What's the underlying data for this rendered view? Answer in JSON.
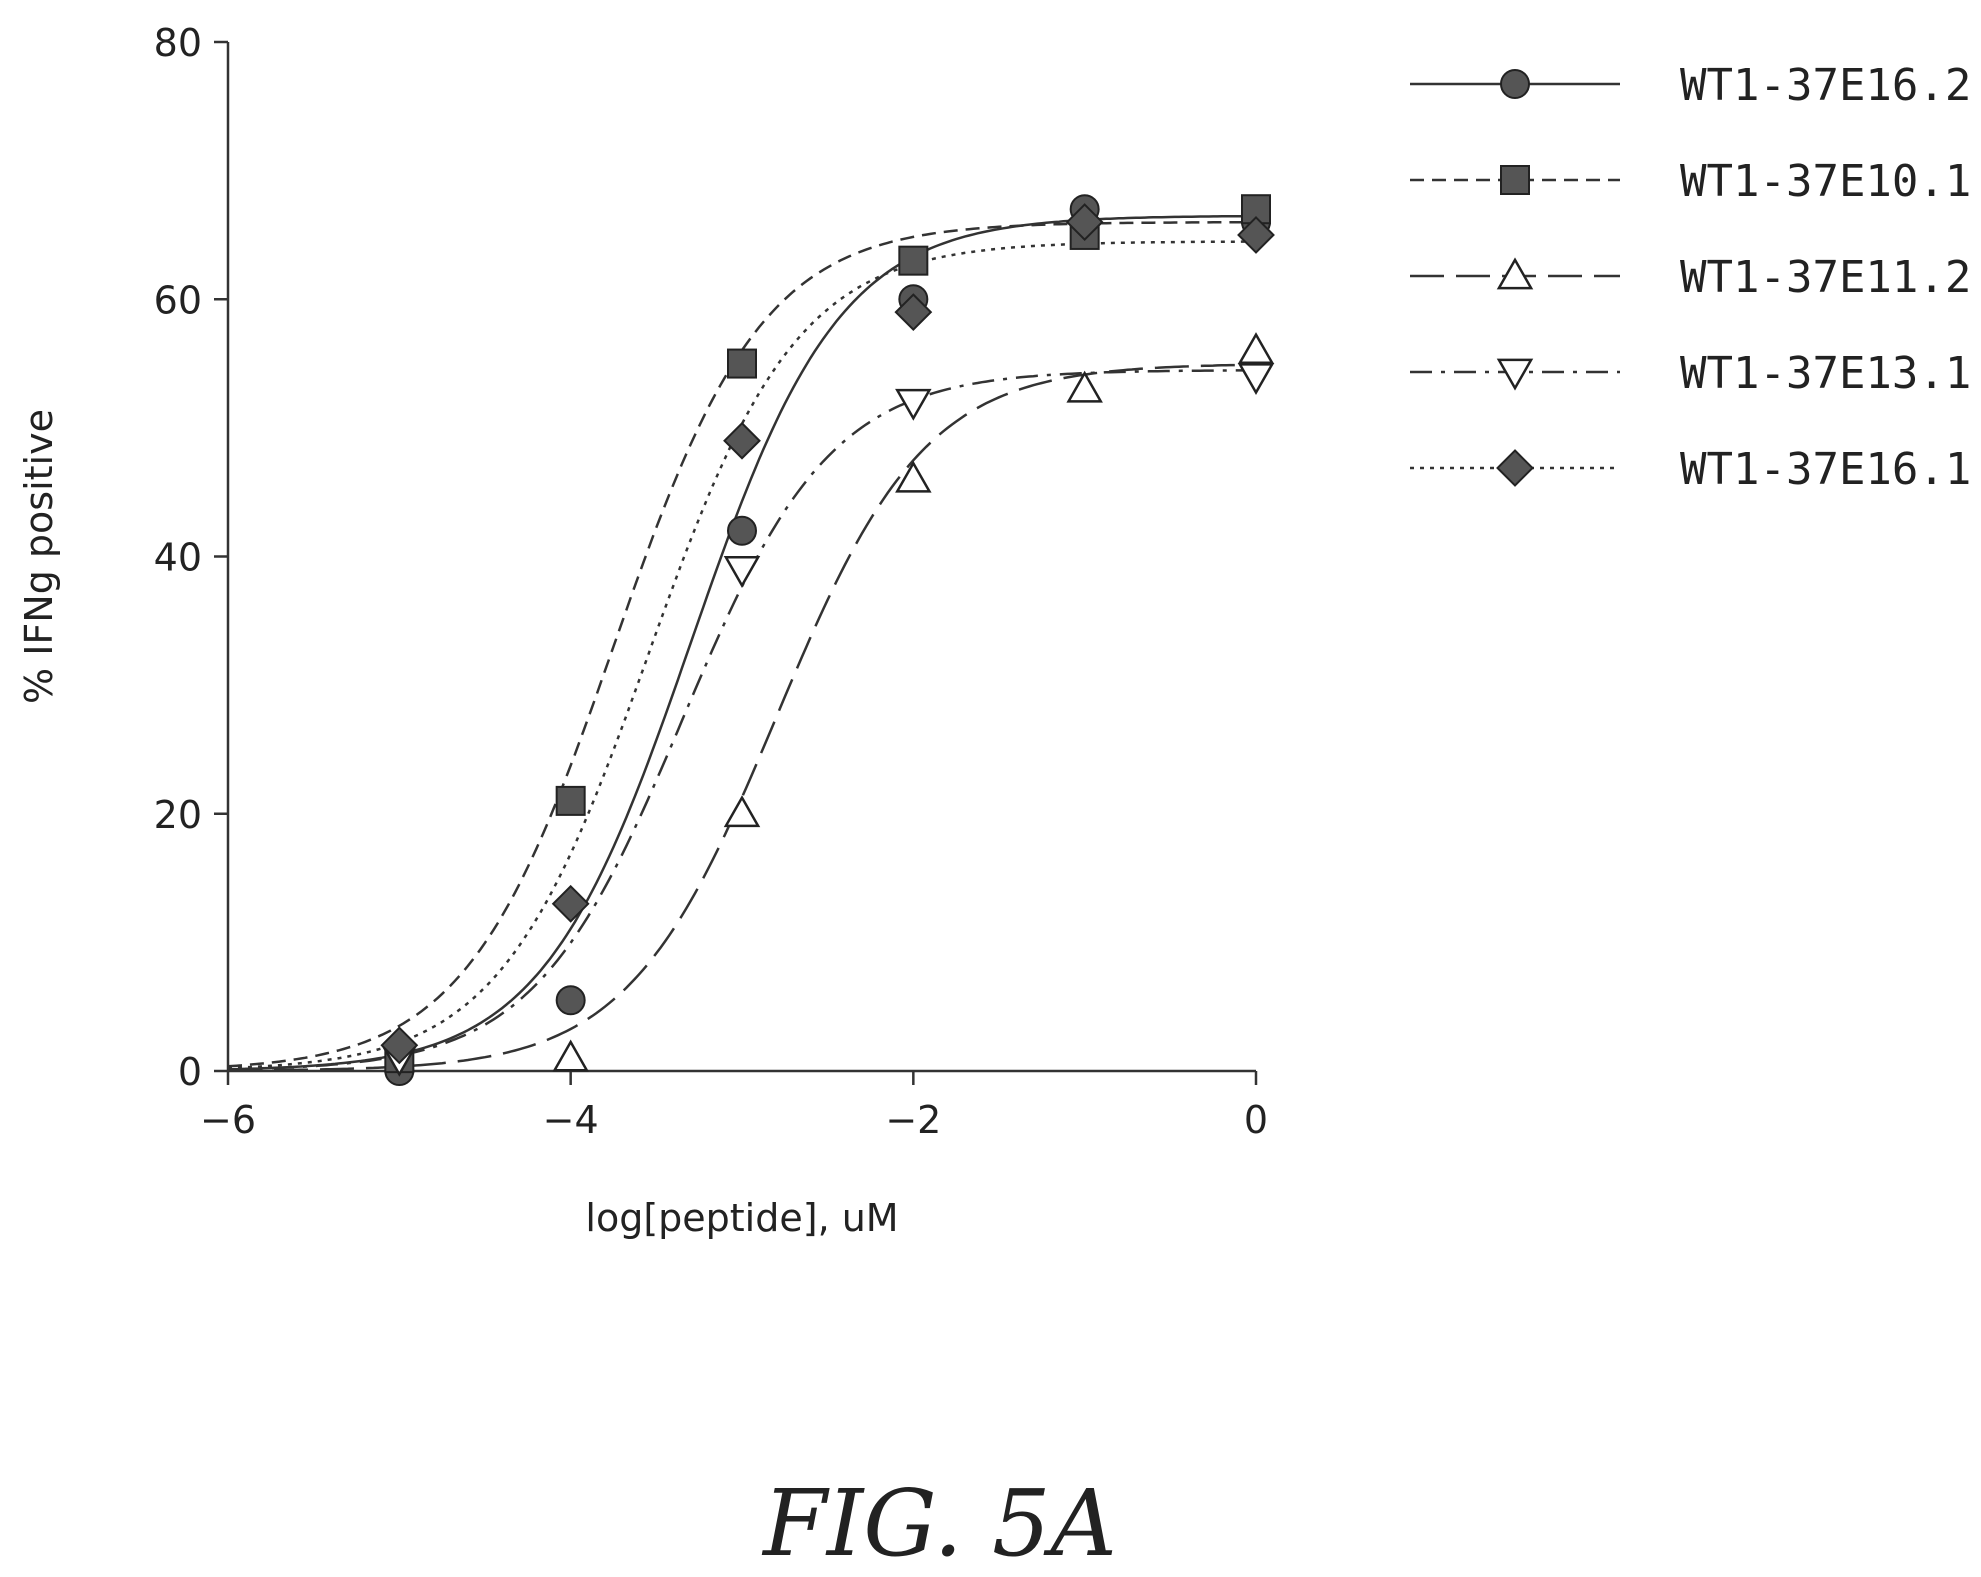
{
  "chart_data": {
    "type": "scatter",
    "xlabel": "log[peptide], uM",
    "ylabel": "% IFNg positive",
    "xlim": [
      -6,
      0
    ],
    "ylim": [
      0,
      80
    ],
    "xticks": [
      -6,
      -4,
      -2,
      0
    ],
    "yticks": [
      0,
      20,
      40,
      60,
      80
    ],
    "legend_position": "right",
    "caption": "FIG. 5A",
    "series": [
      {
        "name": "WT1-37E16.2",
        "marker": "filled-circle",
        "line_style": "solid",
        "points": [
          [
            -5,
            0
          ],
          [
            -4,
            5.5
          ],
          [
            -3,
            42
          ],
          [
            -2,
            60
          ],
          [
            -1,
            67
          ],
          [
            0,
            66
          ]
        ],
        "fit": {
          "bottom": 0,
          "top": 66.5,
          "logec50": -3.3,
          "hill": 1.0
        }
      },
      {
        "name": "WT1-37E10.1",
        "marker": "filled-square",
        "line_style": "dashed",
        "points": [
          [
            -5,
            1
          ],
          [
            -4,
            21
          ],
          [
            -3,
            55
          ],
          [
            -2,
            63
          ],
          [
            -1,
            65
          ],
          [
            0,
            67
          ]
        ],
        "fit": {
          "bottom": 0,
          "top": 66,
          "logec50": -3.75,
          "hill": 1.0
        }
      },
      {
        "name": "WT1-37E11.2",
        "marker": "open-triangle-up",
        "line_style": "long-dash",
        "points": [
          [
            -4,
            1
          ],
          [
            -3,
            20
          ],
          [
            -2,
            46
          ],
          [
            -1,
            53
          ],
          [
            0,
            56
          ]
        ],
        "fit": {
          "bottom": 0,
          "top": 55,
          "logec50": -2.8,
          "hill": 1.0
        }
      },
      {
        "name": "WT1-37E13.1",
        "marker": "open-triangle-down",
        "line_style": "dash-dot",
        "points": [
          [
            -5,
            1
          ],
          [
            -3,
            39
          ],
          [
            -2,
            52
          ],
          [
            0,
            54
          ]
        ],
        "fit": {
          "bottom": 0,
          "top": 54.5,
          "logec50": -3.35,
          "hill": 1.0
        }
      },
      {
        "name": "WT1-37E16.1",
        "marker": "filled-diamond",
        "line_style": "dotted",
        "points": [
          [
            -5,
            2
          ],
          [
            -4,
            13
          ],
          [
            -3,
            49
          ],
          [
            -2,
            59
          ],
          [
            -1,
            66
          ],
          [
            0,
            65
          ]
        ],
        "fit": {
          "bottom": 0,
          "top": 64.5,
          "logec50": -3.55,
          "hill": 1.0
        }
      }
    ]
  }
}
